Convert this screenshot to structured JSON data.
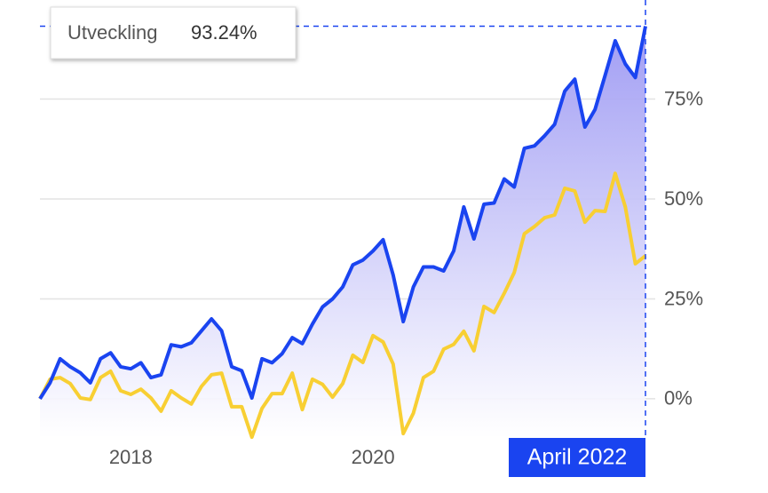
{
  "chart_data": {
    "type": "line",
    "categories": [
      null,
      null,
      null,
      null,
      null,
      null,
      null,
      null,
      null,
      "2018",
      null,
      null,
      null,
      null,
      null,
      null,
      null,
      null,
      null,
      null,
      null,
      null,
      null,
      null,
      null,
      null,
      null,
      null,
      null,
      null,
      null,
      null,
      null,
      "2020",
      null,
      null,
      null,
      null,
      null,
      null,
      null,
      null,
      null,
      null,
      null,
      null,
      null,
      null,
      null,
      null,
      null,
      null,
      null,
      null,
      null,
      null,
      null,
      null,
      null,
      null,
      "April 2022"
    ],
    "series": [
      {
        "color": "#1a44f0",
        "fill": true,
        "values": [
          0,
          4,
          10,
          8,
          6.5,
          4,
          10,
          11.5,
          8,
          7.5,
          9,
          5.3,
          6,
          13.5,
          13,
          14,
          17,
          20,
          17,
          8,
          7,
          0.2,
          10,
          9,
          11.3,
          15.3,
          13.8,
          18.7,
          23,
          25,
          28,
          33.5,
          34.7,
          37,
          39.8,
          31,
          19.3,
          28,
          33,
          33,
          32,
          37,
          48,
          40,
          48.7,
          49,
          55,
          53,
          62.7,
          63.3,
          65.8,
          68.7,
          77,
          80,
          68,
          72.4,
          80.9,
          89.6,
          83.8,
          80.4,
          93.24
        ]
      },
      {
        "color": "#f8cf33",
        "fill": false,
        "values": [
          0,
          4.9,
          5.3,
          3.8,
          0.2,
          -0.2,
          5.3,
          6.9,
          2,
          1.1,
          2.4,
          0.2,
          -3.1,
          2,
          0.2,
          -1.3,
          3.1,
          6,
          6.4,
          -2,
          -2,
          -9.6,
          -2.4,
          1.3,
          1.3,
          6.4,
          -2.7,
          4.9,
          3.6,
          0.4,
          3.8,
          10.9,
          9.1,
          15.8,
          14.2,
          8.7,
          -8.7,
          -3.6,
          5.3,
          6.9,
          12.4,
          13.6,
          16.9,
          12,
          23.1,
          21.6,
          26.4,
          31.6,
          41.3,
          43.1,
          45.3,
          46,
          52.7,
          52,
          44.2,
          47.1,
          46.9,
          56.4,
          48,
          33.8,
          35.8
        ]
      }
    ],
    "ylim": [
      -9.8,
      99.8
    ],
    "yticks": [
      {
        "value": 0,
        "label": "0%"
      },
      {
        "value": 25,
        "label": "25%"
      },
      {
        "value": 50,
        "label": "50%"
      },
      {
        "value": 75,
        "label": "75%"
      }
    ],
    "grid": true,
    "tooltip": {
      "label": "Utveckling",
      "value": 93.24,
      "value_label": "93.24%"
    }
  }
}
